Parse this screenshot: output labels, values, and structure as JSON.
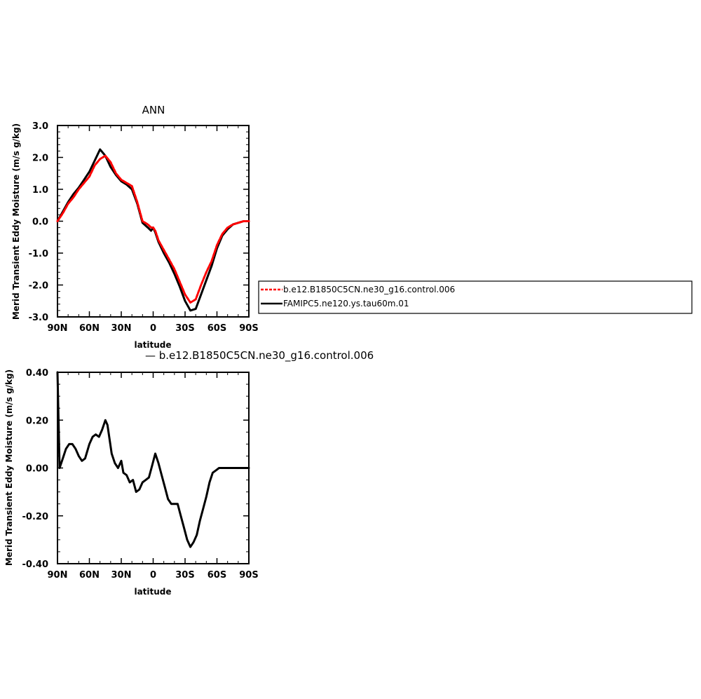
{
  "chart_data": [
    {
      "type": "line",
      "title": "ANN",
      "xlabel": "latitude",
      "ylabel": "Merid Transient Eddy Moisture (m/s g/kg)",
      "x_tick_labels": [
        "90N",
        "60N",
        "30N",
        "0",
        "30S",
        "60S",
        "90S"
      ],
      "y_tick_labels": [
        "3.0",
        "2.0",
        "1.0",
        "0.0",
        "-1.0",
        "-2.0",
        "-3.0"
      ],
      "xlim": [
        90,
        -90
      ],
      "ylim": [
        -3.0,
        3.0
      ],
      "legend_position": "right",
      "series": [
        {
          "name": "b.e12.B1850C5CN.ne30_g16.control.006",
          "color": "#ff0000",
          "style": "dashed",
          "x": [
            90,
            85,
            80,
            75,
            70,
            65,
            60,
            55,
            50,
            45,
            40,
            35,
            30,
            25,
            20,
            15,
            10,
            5,
            2,
            0,
            -2,
            -5,
            -10,
            -15,
            -20,
            -25,
            -30,
            -35,
            -40,
            -45,
            -50,
            -55,
            -60,
            -65,
            -70,
            -75,
            -80,
            -85,
            -90
          ],
          "y": [
            0.0,
            0.25,
            0.55,
            0.75,
            1.0,
            1.2,
            1.4,
            1.75,
            1.95,
            2.05,
            1.85,
            1.5,
            1.3,
            1.2,
            1.1,
            0.6,
            0.0,
            -0.1,
            -0.2,
            -0.2,
            -0.3,
            -0.6,
            -0.9,
            -1.2,
            -1.5,
            -1.9,
            -2.3,
            -2.55,
            -2.45,
            -2.0,
            -1.6,
            -1.25,
            -0.75,
            -0.4,
            -0.2,
            -0.1,
            -0.05,
            0.0,
            0.0
          ]
        },
        {
          "name": "FAMIPC5.ne120.ys.tau60m.01",
          "color": "#000000",
          "style": "solid",
          "x": [
            90,
            85,
            80,
            75,
            70,
            65,
            60,
            55,
            50,
            45,
            40,
            35,
            30,
            25,
            20,
            15,
            10,
            5,
            2,
            0,
            -2,
            -5,
            -10,
            -15,
            -20,
            -25,
            -30,
            -35,
            -40,
            -45,
            -50,
            -55,
            -60,
            -65,
            -70,
            -75,
            -80,
            -85,
            -90
          ],
          "y": [
            0.0,
            0.3,
            0.6,
            0.85,
            1.05,
            1.3,
            1.55,
            1.9,
            2.25,
            2.05,
            1.7,
            1.45,
            1.25,
            1.15,
            1.0,
            0.55,
            -0.05,
            -0.2,
            -0.3,
            -0.2,
            -0.35,
            -0.65,
            -1.0,
            -1.3,
            -1.65,
            -2.05,
            -2.5,
            -2.8,
            -2.75,
            -2.3,
            -1.85,
            -1.4,
            -0.85,
            -0.45,
            -0.25,
            -0.1,
            -0.05,
            0.0,
            0.0
          ]
        }
      ]
    },
    {
      "type": "line",
      "title": "— b.e12.B1850C5CN.ne30_g16.control.006",
      "xlabel": "latitude",
      "ylabel": "Merid Transient Eddy Moisture (m/s g/kg)",
      "x_tick_labels": [
        "90N",
        "60N",
        "30N",
        "0",
        "30S",
        "60S",
        "90S"
      ],
      "y_tick_labels": [
        "0.40",
        "0.20",
        "0.00",
        "-0.20",
        "-0.40"
      ],
      "xlim": [
        90,
        -90
      ],
      "ylim": [
        -0.4,
        0.4
      ],
      "series": [
        {
          "color": "#000000",
          "style": "solid",
          "x": [
            90,
            88,
            85,
            82,
            79,
            76,
            73,
            70,
            67,
            64,
            60,
            57,
            54,
            51,
            48,
            45,
            43,
            41,
            39,
            36,
            33,
            30,
            28,
            25,
            22,
            19,
            16,
            13,
            10,
            7,
            4,
            1,
            -2,
            -5,
            -8,
            -11,
            -14,
            -17,
            -20,
            -23,
            -26,
            -29,
            -32,
            -35,
            -38,
            -41,
            -44,
            -47,
            -50,
            -53,
            -56,
            -59,
            -62,
            -65,
            -68,
            -71,
            -74,
            -77,
            -80,
            -84,
            -87,
            -90
          ],
          "y": [
            0.4,
            0.0,
            0.04,
            0.08,
            0.1,
            0.1,
            0.08,
            0.05,
            0.03,
            0.04,
            0.1,
            0.13,
            0.14,
            0.13,
            0.16,
            0.2,
            0.18,
            0.12,
            0.06,
            0.02,
            0.0,
            0.03,
            -0.02,
            -0.03,
            -0.06,
            -0.05,
            -0.1,
            -0.09,
            -0.06,
            -0.05,
            -0.04,
            0.01,
            0.06,
            0.02,
            -0.03,
            -0.08,
            -0.13,
            -0.15,
            -0.15,
            -0.15,
            -0.2,
            -0.25,
            -0.3,
            -0.33,
            -0.31,
            -0.28,
            -0.22,
            -0.17,
            -0.12,
            -0.06,
            -0.02,
            -0.01,
            0.0,
            0.0,
            0.0,
            0.0,
            0.0,
            0.0,
            0.0,
            0.0,
            0.0,
            0.0
          ]
        }
      ]
    }
  ]
}
